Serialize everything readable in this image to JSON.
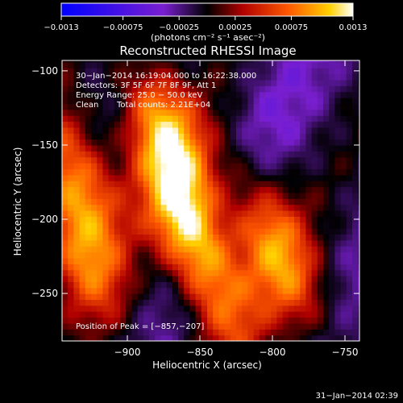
{
  "chart_data": {
    "type": "heatmap",
    "title": "Reconstructed RHESSI Image",
    "xlabel": "Heliocentric X (arcsec)",
    "ylabel": "Heliocentric Y (arcsec)",
    "xlim": [
      -945,
      -740
    ],
    "ylim": [
      -282,
      -93
    ],
    "x_ticks": [
      -900,
      -850,
      -800,
      -750
    ],
    "x_tick_labels": [
      "−900",
      "−850",
      "−800",
      "−750"
    ],
    "y_ticks": [
      -100,
      -150,
      -200,
      -250
    ],
    "y_tick_labels": [
      "−100",
      "−150",
      "−200",
      "−250"
    ],
    "colorbar": {
      "range": [
        -0.0013,
        0.0013
      ],
      "ticks": [
        -0.0013,
        -0.00075,
        -0.00025,
        0.00025,
        0.00075,
        0.0013
      ],
      "tick_labels": [
        "−0.0013",
        "−0.00075",
        "−0.00025",
        "0.00025",
        "0.00075",
        "0.0013"
      ],
      "units": "(photons cm⁻² s⁻¹ asec⁻²)"
    },
    "annotations": {
      "time_range": "30−Jan−2014 16:19:04.000 to 16:22:38.000",
      "detectors": "Detectors: 3F 5F 6F 7F 8F 9F, Att 1",
      "energy": "Energy Range: 25.0 − 50.0 keV",
      "clean": "Clean",
      "total_counts": "Total counts: 2.21E+04",
      "peak": "Position of Peak = [−857,−207]"
    },
    "sources": [
      {
        "x": -857,
        "y": -207,
        "amplitude": 0.0013
      },
      {
        "x": -874,
        "y": -140,
        "amplitude": 0.0011
      },
      {
        "x": -935,
        "y": -170,
        "amplitude": 0.0009
      },
      {
        "x": -930,
        "y": -225,
        "amplitude": 0.0008
      },
      {
        "x": -808,
        "y": -200,
        "amplitude": 0.0007
      },
      {
        "x": -785,
        "y": -245,
        "amplitude": 0.0006
      },
      {
        "x": -830,
        "y": -265,
        "amplitude": 0.0005
      }
    ],
    "peak": {
      "x": -857,
      "y": -207
    }
  },
  "footer_timestamp": "31−Jan−2014 02:39"
}
